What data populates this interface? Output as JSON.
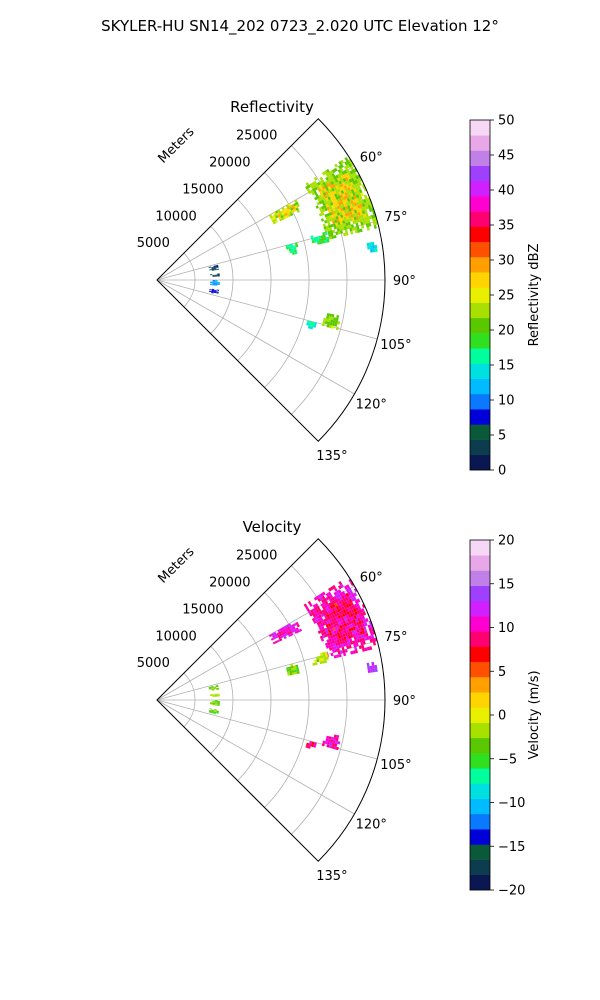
{
  "figure_title": "SKYLER-HU  SN14_202  0723_2.020 UTC Elevation 12°",
  "chart_data": [
    {
      "type": "heatmap",
      "projection": "polar-sector",
      "title": "Reflectivity",
      "radial_axis_label": "Meters",
      "radial_ticks": [
        5000,
        10000,
        15000,
        20000,
        25000
      ],
      "radial_tick_labels": [
        "5000",
        "10000",
        "15000",
        "20000",
        "25000"
      ],
      "r_max": 30000,
      "theta_range_deg": [
        45,
        135
      ],
      "theta_ticks_deg": [
        60,
        75,
        90,
        105,
        120,
        135
      ],
      "theta_tick_labels": [
        "60°",
        "75°",
        "90°",
        "105°",
        "120°",
        "135°"
      ],
      "grid": true,
      "colorbar": {
        "label": "Reflectivity dBZ",
        "range": [
          0,
          50
        ],
        "ticks": [
          0,
          5,
          10,
          15,
          20,
          25,
          30,
          35,
          40,
          45,
          50
        ],
        "tick_labels": [
          "0",
          "5",
          "10",
          "15",
          "20",
          "25",
          "30",
          "35",
          "40",
          "45",
          "50"
        ],
        "colormap": [
          "#0a1752",
          "#0c3c4e",
          "#0a5a3a",
          "#0000d8",
          "#0a78ff",
          "#00bcff",
          "#00e0e0",
          "#00ff9c",
          "#30e020",
          "#5ac800",
          "#a8e000",
          "#e8f000",
          "#ffd400",
          "#ffa000",
          "#ff5000",
          "#ff0000",
          "#ff0070",
          "#ff00d0",
          "#d020ff",
          "#a040ff",
          "#c080e8",
          "#e8a8e8",
          "#f6d8f6"
        ]
      },
      "echo_regions": [
        {
          "theta_deg": [
            57,
            76
          ],
          "r_m": [
            23000,
            30000
          ],
          "value": 22,
          "core": 28
        },
        {
          "theta_deg": [
            60,
            64
          ],
          "r_m": [
            17000,
            21000
          ],
          "value": 23,
          "core": 27
        },
        {
          "theta_deg": [
            74,
            77
          ],
          "r_m": [
            21000,
            23000
          ],
          "value": 18
        },
        {
          "theta_deg": [
            75,
            79
          ],
          "r_m": [
            17500,
            19000
          ],
          "value": 17
        },
        {
          "theta_deg": [
            80,
            82
          ],
          "r_m": [
            28000,
            29000
          ],
          "value": 14
        },
        {
          "theta_deg": [
            76,
            80
          ],
          "r_m": [
            7000,
            8000
          ],
          "value": 5
        },
        {
          "theta_deg": [
            84,
            86
          ],
          "r_m": [
            7000,
            8000
          ],
          "value": 3
        },
        {
          "theta_deg": [
            90,
            95
          ],
          "r_m": [
            7000,
            8000
          ],
          "value": 11
        },
        {
          "theta_deg": [
            99,
            103
          ],
          "r_m": [
            7000,
            8000
          ],
          "value": 7
        },
        {
          "theta_deg": [
            101,
            105
          ],
          "r_m": [
            22500,
            24500
          ],
          "value": 22
        },
        {
          "theta_deg": [
            105,
            107
          ],
          "r_m": [
            20500,
            21500
          ],
          "value": 16
        }
      ]
    },
    {
      "type": "heatmap",
      "projection": "polar-sector",
      "title": "Velocity",
      "radial_axis_label": "Meters",
      "radial_ticks": [
        5000,
        10000,
        15000,
        20000,
        25000
      ],
      "radial_tick_labels": [
        "5000",
        "10000",
        "15000",
        "20000",
        "25000"
      ],
      "r_max": 30000,
      "theta_range_deg": [
        45,
        135
      ],
      "theta_ticks_deg": [
        60,
        75,
        90,
        105,
        120,
        135
      ],
      "theta_tick_labels": [
        "60°",
        "75°",
        "90°",
        "105°",
        "120°",
        "135°"
      ],
      "grid": true,
      "colorbar": {
        "label": "Velocity (m/s)",
        "range": [
          -20,
          20
        ],
        "ticks": [
          -20,
          -15,
          -10,
          -5,
          0,
          5,
          10,
          15,
          20
        ],
        "tick_labels": [
          "−20",
          "−15",
          "−10",
          "−5",
          "0",
          "5",
          "10",
          "15",
          "20"
        ],
        "colormap": [
          "#0a1752",
          "#0c3c4e",
          "#0a5a3a",
          "#0000d8",
          "#0a78ff",
          "#00bcff",
          "#00e0e0",
          "#00ff9c",
          "#30e020",
          "#5ac800",
          "#a8e000",
          "#e8f000",
          "#ffd400",
          "#ffa000",
          "#ff5000",
          "#ff0000",
          "#ff0070",
          "#ff00d0",
          "#d020ff",
          "#a040ff",
          "#c080e8",
          "#e8a8e8",
          "#f6d8f6"
        ]
      },
      "echo_regions": [
        {
          "theta_deg": [
            57,
            76
          ],
          "r_m": [
            23000,
            30000
          ],
          "value": 10,
          "core": 8
        },
        {
          "theta_deg": [
            60,
            64
          ],
          "r_m": [
            17000,
            21000
          ],
          "value": 11,
          "core": 9
        },
        {
          "theta_deg": [
            74,
            77
          ],
          "r_m": [
            21000,
            23000
          ],
          "value": -2
        },
        {
          "theta_deg": [
            75,
            79
          ],
          "r_m": [
            17500,
            19000
          ],
          "value": -3
        },
        {
          "theta_deg": [
            80,
            82
          ],
          "r_m": [
            28000,
            29000
          ],
          "value": 14
        },
        {
          "theta_deg": [
            76,
            80
          ],
          "r_m": [
            7000,
            8000
          ],
          "value": -3
        },
        {
          "theta_deg": [
            84,
            86
          ],
          "r_m": [
            7000,
            8000
          ],
          "value": -2
        },
        {
          "theta_deg": [
            90,
            95
          ],
          "r_m": [
            7000,
            8000
          ],
          "value": -3
        },
        {
          "theta_deg": [
            99,
            103
          ],
          "r_m": [
            7000,
            8000
          ],
          "value": -4
        },
        {
          "theta_deg": [
            101,
            105
          ],
          "r_m": [
            22500,
            24500
          ],
          "value": 10
        },
        {
          "theta_deg": [
            105,
            107
          ],
          "r_m": [
            20500,
            21500
          ],
          "value": 9
        }
      ]
    }
  ]
}
